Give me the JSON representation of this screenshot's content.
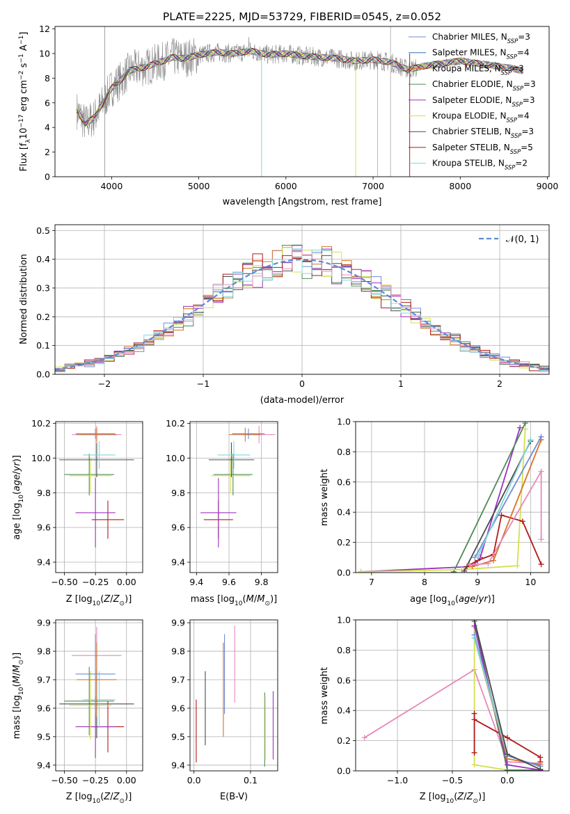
{
  "title": "PLATE=2225, MJD=53729, FIBERID=0545, z=0.052",
  "colors": {
    "Chabrier MILES": "#6e8bd6",
    "Salpeter MILES": "#2e6fb8",
    "Kroupa MILES": "#d9702a",
    "Chabrier ELODIE": "#4d8a55",
    "Salpeter ELODIE": "#9b30c0",
    "Kroupa ELODIE": "#d4e04a",
    "Chabrier STELIB": "#4a4a4a",
    "Salpeter STELIB": "#b01818",
    "Kroupa STELIB": "#7fd8d8",
    "pink": "#e58ab8",
    "data": "#8a8a8a",
    "normal": "#5b8ad8"
  },
  "chart_data": [
    {
      "type": "line",
      "id": "spectrum",
      "xlabel": "wavelength [Angstrom, rest frame]",
      "ylabel": "Flux [f",
      "xlim": [
        3350,
        9020
      ],
      "ylim": [
        0,
        12.2
      ],
      "xticks": [
        4000,
        5000,
        6000,
        7000,
        8000,
        9000
      ],
      "yticks": [
        0,
        2,
        4,
        6,
        8,
        10,
        12
      ],
      "legend": [
        {
          "name": "Chabrier MILES",
          "label": "Chabrier MILES, N",
          "n": "=3"
        },
        {
          "name": "Salpeter MILES",
          "label": "Salpeter MILES, N",
          "n": "=4"
        },
        {
          "name": "Kroupa MILES",
          "label": "Kroupa MILES, N",
          "n": "=3"
        },
        {
          "name": "Chabrier ELODIE",
          "label": "Chabrier ELODIE, N",
          "n": "=3"
        },
        {
          "name": "Salpeter ELODIE",
          "label": "Salpeter ELODIE, N",
          "n": "=3"
        },
        {
          "name": "Kroupa ELODIE",
          "label": "Kroupa ELODIE, N",
          "n": "=4"
        },
        {
          "name": "Chabrier STELIB",
          "label": "Chabrier STELIB, N",
          "n": "=3"
        },
        {
          "name": "Salpeter STELIB",
          "label": "Salpeter STELIB, N",
          "n": "=5"
        },
        {
          "name": "Kroupa STELIB",
          "label": "Kroupa STELIB, N",
          "n": "=2"
        }
      ],
      "model_x": [
        3600,
        3700,
        3800,
        3900,
        4000,
        4100,
        4200,
        4300,
        4400,
        4500,
        4600,
        4700,
        4800,
        4900,
        5000,
        5200,
        5400,
        5600,
        5800,
        6000,
        6200,
        6400,
        6600,
        6800,
        7000,
        7200,
        7400,
        7600,
        7800,
        8000,
        8200,
        8400,
        8600,
        8700
      ],
      "model_y": [
        5.4,
        4.3,
        4.8,
        6.0,
        7.2,
        7.8,
        8.6,
        8.8,
        8.9,
        9.2,
        9.4,
        9.7,
        9.6,
        9.7,
        9.9,
        10.1,
        10.0,
        10.2,
        9.9,
        10.0,
        9.8,
        9.7,
        9.6,
        9.4,
        9.5,
        9.3,
        8.7,
        9.0,
        9.2,
        9.4,
        9.2,
        9.0,
        8.8,
        8.6
      ]
    },
    {
      "type": "histogram",
      "id": "residuals",
      "xlabel": "(data-model)/error",
      "ylabel": "Normed distribution",
      "xlim": [
        -2.5,
        2.5
      ],
      "ylim": [
        0,
        0.52
      ],
      "xticks": [
        -2,
        -1,
        0,
        1,
        2
      ],
      "yticks": [
        0,
        0.1,
        0.2,
        0.3,
        0.4,
        0.5
      ],
      "legend": "N(0,1)",
      "bin_width": 0.1,
      "normal_mu": 0,
      "normal_sigma": 1
    },
    {
      "type": "scatter",
      "id": "age_vs_Z",
      "xlabel": "Z [log",
      "ylabel": "age  [log",
      "xlim": [
        -0.57,
        0.13
      ],
      "ylim": [
        9.34,
        10.21
      ],
      "xticks": [
        -0.5,
        -0.25,
        0.0
      ],
      "yticks": [
        9.4,
        9.6,
        9.8,
        10.0,
        10.2
      ],
      "points": [
        {
          "c": "Salpeter STELIB",
          "x": -0.15,
          "xerr": 0.13,
          "y": 9.645,
          "yerr": 0.11
        },
        {
          "c": "Salpeter ELODIE",
          "x": -0.25,
          "xerr": 0.16,
          "y": 9.685,
          "yerr": 0.2
        },
        {
          "c": "Chabrier ELODIE",
          "x": -0.3,
          "xerr": 0.2,
          "y": 9.905,
          "yerr": 0.12
        },
        {
          "c": "Kroupa ELODIE",
          "x": -0.29,
          "xerr": 0.17,
          "y": 9.898,
          "yerr": 0.1
        },
        {
          "c": "Chabrier STELIB",
          "x": -0.24,
          "xerr": 0.3,
          "y": 9.99,
          "yerr": 0.1
        },
        {
          "c": "Kroupa STELIB",
          "x": -0.22,
          "xerr": 0.13,
          "y": 10.018,
          "yerr": 0.08
        },
        {
          "c": "pink",
          "x": -0.24,
          "xerr": 0.2,
          "y": 10.135,
          "yerr": 0.05
        },
        {
          "c": "Kroupa MILES",
          "x": -0.24,
          "xerr": 0.16,
          "y": 10.135,
          "yerr": 0.04
        },
        {
          "c": "Chabrier MILES",
          "x": -0.25,
          "xerr": 0.16,
          "y": 10.14,
          "yerr": 0.03
        }
      ]
    },
    {
      "type": "scatter",
      "id": "age_vs_mass",
      "xlabel": "mass [log",
      "ylabel": "",
      "xlim": [
        9.36,
        9.9
      ],
      "ylim": [
        9.34,
        10.21
      ],
      "xticks": [
        9.4,
        9.6,
        9.8
      ],
      "yticks": [
        9.4,
        9.6,
        9.8,
        10.0,
        10.2
      ],
      "points": [
        {
          "c": "Salpeter STELIB",
          "x": 9.535,
          "xerr": 0.09,
          "y": 9.645,
          "yerr": 0.11
        },
        {
          "c": "Salpeter ELODIE",
          "x": 9.535,
          "xerr": 0.11,
          "y": 9.685,
          "yerr": 0.2
        },
        {
          "c": "Chabrier ELODIE",
          "x": 9.625,
          "xerr": 0.12,
          "y": 9.905,
          "yerr": 0.12
        },
        {
          "c": "Kroupa ELODIE",
          "x": 9.61,
          "xerr": 0.12,
          "y": 9.898,
          "yerr": 0.1
        },
        {
          "c": "Chabrier STELIB",
          "x": 9.615,
          "xerr": 0.14,
          "y": 9.99,
          "yerr": 0.1
        },
        {
          "c": "Kroupa STELIB",
          "x": 9.63,
          "xerr": 0.1,
          "y": 10.018,
          "yerr": 0.08
        },
        {
          "c": "pink",
          "x": 9.785,
          "xerr": 0.1,
          "y": 10.135,
          "yerr": 0.05
        },
        {
          "c": "Kroupa MILES",
          "x": 9.7,
          "xerr": 0.1,
          "y": 10.135,
          "yerr": 0.04
        },
        {
          "c": "Chabrier MILES",
          "x": 9.72,
          "xerr": 0.1,
          "y": 10.14,
          "yerr": 0.03
        }
      ]
    },
    {
      "type": "line",
      "id": "weight_vs_age",
      "xlabel": "age  [log",
      "ylabel": "mass weight",
      "xlim": [
        6.7,
        10.35
      ],
      "ylim": [
        0,
        1.0
      ],
      "xticks": [
        7,
        8,
        9,
        10
      ],
      "yticks": [
        0,
        0.2,
        0.4,
        0.6,
        0.8,
        1.0
      ],
      "series": [
        {
          "c": "Salpeter ELODIE",
          "x": [
            6.8,
            8.9,
            9.05,
            9.8
          ],
          "y": [
            0.005,
            0.04,
            0.1,
            0.96
          ]
        },
        {
          "c": "Chabrier ELODIE",
          "x": [
            8.55,
            9.9
          ],
          "y": [
            0.005,
            0.99
          ]
        },
        {
          "c": "Kroupa ELODIE",
          "x": [
            6.8,
            8.7,
            9.75,
            9.9
          ],
          "y": [
            0.005,
            0.02,
            0.045,
            0.95
          ]
        },
        {
          "c": "Salpeter STELIB",
          "x": [
            8.8,
            9.0,
            9.3,
            9.45,
            9.85,
            10.2
          ],
          "y": [
            0.04,
            0.08,
            0.12,
            0.38,
            0.34,
            0.055
          ]
        },
        {
          "c": "Kroupa MILES",
          "x": [
            8.9,
            9.3,
            10.2
          ],
          "y": [
            0.04,
            0.08,
            0.88
          ]
        },
        {
          "c": "Chabrier STELIB",
          "x": [
            8.75,
            10.0
          ],
          "y": [
            0.01,
            0.87
          ]
        },
        {
          "c": "Chabrier MILES",
          "x": [
            8.95,
            10.2
          ],
          "y": [
            0.1,
            0.9
          ]
        },
        {
          "c": "Kroupa STELIB",
          "x": [
            9.0,
            10.0
          ],
          "y": [
            0.1,
            0.88
          ]
        },
        {
          "c": "pink",
          "x": [
            8.85,
            9.2,
            10.2,
            10.2
          ],
          "y": [
            0.05,
            0.06,
            0.67,
            0.22
          ]
        }
      ]
    },
    {
      "type": "scatter",
      "id": "mass_vs_Z",
      "xlabel": "Z [log",
      "ylabel": "mass [log",
      "xlim": [
        -0.57,
        0.13
      ],
      "ylim": [
        9.38,
        9.91
      ],
      "xticks": [
        -0.5,
        -0.25,
        0.0
      ],
      "yticks": [
        9.4,
        9.5,
        9.6,
        9.7,
        9.8,
        9.9
      ],
      "points": [
        {
          "c": "Salpeter STELIB",
          "x": -0.15,
          "xerr": 0.13,
          "y": 9.535,
          "yerr": 0.09
        },
        {
          "c": "Salpeter ELODIE",
          "x": -0.25,
          "xerr": 0.16,
          "y": 9.535,
          "yerr": 0.11
        },
        {
          "c": "Chabrier ELODIE",
          "x": -0.3,
          "xerr": 0.2,
          "y": 9.625,
          "yerr": 0.12
        },
        {
          "c": "Kroupa ELODIE",
          "x": -0.29,
          "xerr": 0.17,
          "y": 9.61,
          "yerr": 0.12
        },
        {
          "c": "Chabrier STELIB",
          "x": -0.24,
          "xerr": 0.3,
          "y": 9.615,
          "yerr": 0.12
        },
        {
          "c": "Kroupa STELIB",
          "x": -0.22,
          "xerr": 0.13,
          "y": 9.63,
          "yerr": 0.1
        },
        {
          "c": "pink",
          "x": -0.24,
          "xerr": 0.2,
          "y": 9.785,
          "yerr": 0.1
        },
        {
          "c": "Kroupa MILES",
          "x": -0.24,
          "xerr": 0.16,
          "y": 9.7,
          "yerr": 0.13
        },
        {
          "c": "Chabrier MILES",
          "x": -0.25,
          "xerr": 0.16,
          "y": 9.72,
          "yerr": 0.14
        }
      ]
    },
    {
      "type": "scatter",
      "id": "mass_vs_EBV",
      "xlabel": "E(B-V)",
      "ylabel": "",
      "xlim": [
        -0.007,
        0.148
      ],
      "ylim": [
        9.38,
        9.91
      ],
      "xticks": [
        0.0,
        0.1
      ],
      "yticks": [
        9.4,
        9.5,
        9.6,
        9.7,
        9.8,
        9.9
      ],
      "points": [
        {
          "c": "Salpeter STELIB",
          "x": 0.004,
          "y": 9.52,
          "yerr": 0.11
        },
        {
          "c": "Chabrier STELIB",
          "x": 0.02,
          "y": 9.6,
          "yerr": 0.13
        },
        {
          "c": "Kroupa MILES",
          "x": 0.052,
          "y": 9.665,
          "yerr": 0.165
        },
        {
          "c": "Chabrier MILES",
          "x": 0.054,
          "y": 9.72,
          "yerr": 0.14
        },
        {
          "c": "pink",
          "x": 0.072,
          "y": 9.755,
          "yerr": 0.135
        },
        {
          "c": "Chabrier ELODIE",
          "x": 0.125,
          "y": 9.525,
          "yerr": 0.13
        },
        {
          "c": "Kroupa ELODIE",
          "x": 0.126,
          "y": 9.53,
          "yerr": 0.11
        },
        {
          "c": "Salpeter ELODIE",
          "x": 0.14,
          "y": 9.54,
          "yerr": 0.12
        }
      ]
    },
    {
      "type": "line",
      "id": "weight_vs_Z",
      "xlabel": "Z [log",
      "ylabel": "mass weight",
      "xlim": [
        -1.38,
        0.38
      ],
      "ylim": [
        0,
        1.0
      ],
      "xticks": [
        -1.0,
        -0.5,
        0.0
      ],
      "yticks": [
        0,
        0.2,
        0.4,
        0.6,
        0.8,
        1.0
      ],
      "series": [
        {
          "c": "pink",
          "x": [
            -1.3,
            -0.3,
            0.0,
            0.3
          ],
          "y": [
            0.22,
            0.67,
            0.06,
            0.05
          ]
        },
        {
          "c": "Kroupa ELODIE",
          "x": [
            -0.3,
            -0.3,
            0.0,
            0.3
          ],
          "y": [
            0.95,
            0.04,
            0.005,
            0.005
          ]
        },
        {
          "c": "Salpeter STELIB",
          "x": [
            -0.3,
            -0.3,
            -0.3,
            0.0,
            0.3,
            0.3
          ],
          "y": [
            0.12,
            0.38,
            0.34,
            0.22,
            0.09,
            0.06
          ]
        },
        {
          "c": "Chabrier ELODIE",
          "x": [
            -0.3,
            0.0,
            0.3
          ],
          "y": [
            0.99,
            0.005,
            0.005
          ]
        },
        {
          "c": "Salpeter ELODIE",
          "x": [
            -0.3,
            0.0,
            0.3
          ],
          "y": [
            0.96,
            0.04,
            0.005
          ]
        },
        {
          "c": "Kroupa MILES",
          "x": [
            -0.3,
            0.0,
            0.3
          ],
          "y": [
            0.88,
            0.08,
            0.04
          ]
        },
        {
          "c": "Chabrier MILES",
          "x": [
            -0.3,
            0.0,
            0.3
          ],
          "y": [
            0.9,
            0.1,
            0.03
          ]
        },
        {
          "c": "Kroupa STELIB",
          "x": [
            -0.3,
            0.0
          ],
          "y": [
            0.88,
            0.1
          ]
        },
        {
          "c": "Chabrier STELIB",
          "x": [
            -0.3,
            0.0,
            0.3
          ],
          "y": [
            1.0,
            0.11,
            0.01
          ]
        }
      ]
    }
  ]
}
